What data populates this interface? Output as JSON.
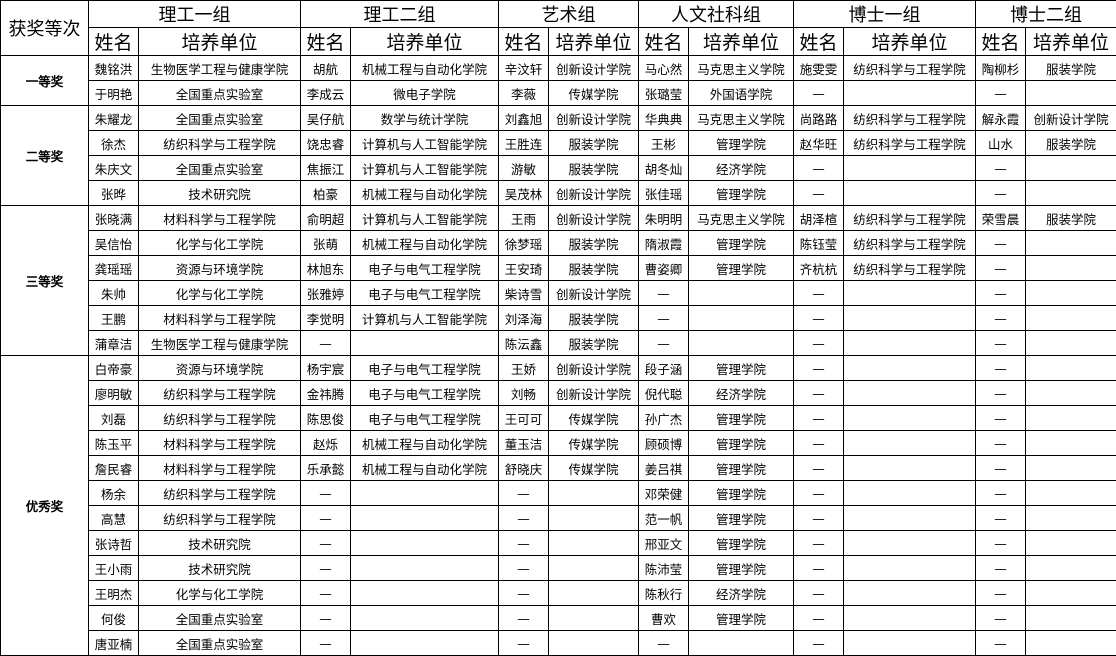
{
  "header": {
    "corner": "获奖等次",
    "groups": [
      "理工一组",
      "理工二组",
      "艺术组",
      "人文社科组",
      "博士一组",
      "博士二组"
    ],
    "name_label": "姓名",
    "unit_label": "培养单位"
  },
  "awards": [
    {
      "label": "一等奖",
      "rows": 2
    },
    {
      "label": "二等奖",
      "rows": 4
    },
    {
      "label": "三等奖",
      "rows": 6
    },
    {
      "label": "优秀奖",
      "rows": 12
    }
  ],
  "rows": [
    [
      "魏铭洪",
      "生物医学工程与健康学院",
      "胡航",
      "机械工程与自动化学院",
      "辛汶轩",
      "创新设计学院",
      "马心然",
      "马克思主义学院",
      "施雯雯",
      "纺织科学与工程学院",
      "陶柳杉",
      "服装学院"
    ],
    [
      "于明艳",
      "全国重点实验室",
      "李成云",
      "微电子学院",
      "李薇",
      "传媒学院",
      "张璐莹",
      "外国语学院",
      "—",
      "",
      "—",
      ""
    ],
    [
      "朱耀龙",
      "全国重点实验室",
      "吴仔航",
      "数学与统计学院",
      "刘鑫旭",
      "创新设计学院",
      "华典典",
      "马克思主义学院",
      "尚路路",
      "纺织科学与工程学院",
      "解永霞",
      "创新设计学院"
    ],
    [
      "徐杰",
      "纺织科学与工程学院",
      "饶忠睿",
      "计算机与人工智能学院",
      "王胜连",
      "服装学院",
      "王彬",
      "管理学院",
      "赵华旺",
      "纺织科学与工程学院",
      "山水",
      "服装学院"
    ],
    [
      "朱庆文",
      "全国重点实验室",
      "焦振江",
      "计算机与人工智能学院",
      "游敏",
      "服装学院",
      "胡冬灿",
      "经济学院",
      "—",
      "",
      "—",
      ""
    ],
    [
      "张晔",
      "技术研究院",
      "柏豪",
      "机械工程与自动化学院",
      "吴茂林",
      "创新设计学院",
      "张佳瑶",
      "管理学院",
      "—",
      "",
      "—",
      ""
    ],
    [
      "张晓满",
      "材料科学与工程学院",
      "俞明超",
      "计算机与人工智能学院",
      "王雨",
      "创新设计学院",
      "朱明明",
      "马克思主义学院",
      "胡泽楦",
      "纺织科学与工程学院",
      "荣雪晨",
      "服装学院"
    ],
    [
      "吴信怡",
      "化学与化工学院",
      "张萌",
      "机械工程与自动化学院",
      "徐梦瑶",
      "服装学院",
      "隋淑霞",
      "管理学院",
      "陈钰莹",
      "纺织科学与工程学院",
      "—",
      ""
    ],
    [
      "龚瑶瑶",
      "资源与环境学院",
      "林旭东",
      "电子与电气工程学院",
      "王安琦",
      "服装学院",
      "曹姿卿",
      "管理学院",
      "齐杭杭",
      "纺织科学与工程学院",
      "—",
      ""
    ],
    [
      "朱帅",
      "化学与化工学院",
      "张雅婷",
      "电子与电气工程学院",
      "柴诗雪",
      "创新设计学院",
      "—",
      "",
      "—",
      "",
      "—",
      ""
    ],
    [
      "王鹏",
      "材料科学与工程学院",
      "李觉明",
      "计算机与人工智能学院",
      "刘泽海",
      "服装学院",
      "—",
      "",
      "—",
      "",
      "—",
      ""
    ],
    [
      "蒲章洁",
      "生物医学工程与健康学院",
      "—",
      "",
      "陈沄鑫",
      "服装学院",
      "—",
      "",
      "—",
      "",
      "—",
      ""
    ],
    [
      "白帝豪",
      "资源与环境学院",
      "杨宇宸",
      "电子与电气工程学院",
      "王娇",
      "创新设计学院",
      "段子涵",
      "管理学院",
      "—",
      "",
      "—",
      ""
    ],
    [
      "廖明敏",
      "纺织科学与工程学院",
      "金祎腾",
      "电子与电气工程学院",
      "刘畅",
      "创新设计学院",
      "倪代聪",
      "经济学院",
      "—",
      "",
      "—",
      ""
    ],
    [
      "刘磊",
      "纺织科学与工程学院",
      "陈思俊",
      "电子与电气工程学院",
      "王可可",
      "传媒学院",
      "孙广杰",
      "管理学院",
      "—",
      "",
      "—",
      ""
    ],
    [
      "陈玉平",
      "材料科学与工程学院",
      "赵烁",
      "机械工程与自动化学院",
      "董玉洁",
      "传媒学院",
      "顾硕博",
      "管理学院",
      "—",
      "",
      "—",
      ""
    ],
    [
      "詹民睿",
      "材料科学与工程学院",
      "乐承懿",
      "机械工程与自动化学院",
      "舒晓庆",
      "传媒学院",
      "姜吕祺",
      "管理学院",
      "—",
      "",
      "—",
      ""
    ],
    [
      "杨余",
      "纺织科学与工程学院",
      "—",
      "",
      "—",
      "",
      "邓荣健",
      "管理学院",
      "—",
      "",
      "—",
      ""
    ],
    [
      "高慧",
      "纺织科学与工程学院",
      "—",
      "",
      "—",
      "",
      "范一帆",
      "管理学院",
      "—",
      "",
      "—",
      ""
    ],
    [
      "张诗哲",
      "技术研究院",
      "—",
      "",
      "—",
      "",
      "邢亚文",
      "管理学院",
      "—",
      "",
      "—",
      ""
    ],
    [
      "王小雨",
      "技术研究院",
      "—",
      "",
      "—",
      "",
      "陈沛莹",
      "管理学院",
      "—",
      "",
      "—",
      ""
    ],
    [
      "王明杰",
      "化学与化工学院",
      "—",
      "",
      "—",
      "",
      "陈秋行",
      "经济学院",
      "—",
      "",
      "—",
      ""
    ],
    [
      "何俊",
      "全国重点实验室",
      "—",
      "",
      "—",
      "",
      "曹欢",
      "管理学院",
      "—",
      "",
      "—",
      ""
    ],
    [
      "唐亚楠",
      "全国重点实验室",
      "—",
      "",
      "—",
      "",
      "—",
      "",
      "—",
      "",
      "—",
      ""
    ]
  ]
}
